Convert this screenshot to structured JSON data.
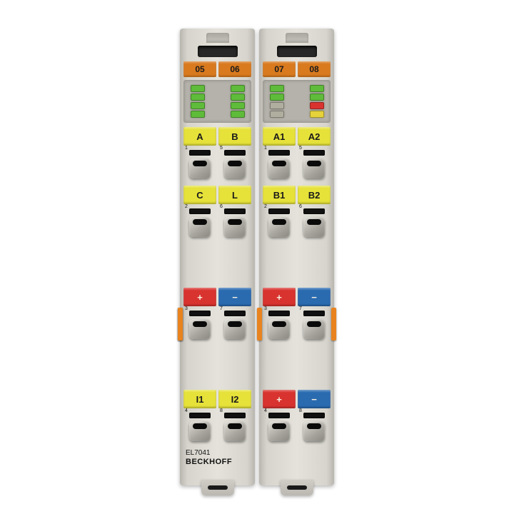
{
  "colors": {
    "orange": "#d97a1f",
    "orange_clip": "#e8831f",
    "yellow": "#e6e23a",
    "red": "#d9332f",
    "blue": "#2a6bb0",
    "led_green": "#5fbb3a",
    "led_off": "#b0ae9f",
    "led_red": "#d9332f",
    "led_yellow": "#e6d23a",
    "text_dark": "#1a1a1a",
    "text_light": "#f8efe0"
  },
  "product_id": "EL7041",
  "brand": "BECKHOFF",
  "left": {
    "bus": [
      "05",
      "06"
    ],
    "leds": [
      [
        "led_green",
        "led_green"
      ],
      [
        "led_green",
        "led_green"
      ],
      [
        "led_green",
        "led_green"
      ],
      [
        "led_green",
        "led_green"
      ]
    ],
    "group1": {
      "labels": [
        "A",
        "B"
      ],
      "color": "yellow",
      "txt": "text_dark",
      "nums": [
        "1",
        "5"
      ]
    },
    "group2": {
      "labels": [
        "C",
        "L"
      ],
      "color": "yellow",
      "txt": "text_dark",
      "nums": [
        "2",
        "6"
      ]
    },
    "group3": {
      "labels": [
        "+",
        "−"
      ],
      "colors": [
        "red",
        "blue"
      ],
      "txts": [
        "text_light",
        "text_light"
      ],
      "nums": [
        "3",
        "7"
      ]
    },
    "group3_clip_left": true,
    "group4": {
      "labels": [
        "I1",
        "I2"
      ],
      "color": "yellow",
      "txt": "text_dark",
      "nums": [
        "4",
        "8"
      ]
    }
  },
  "right": {
    "bus": [
      "07",
      "08"
    ],
    "leds": [
      [
        "led_green",
        "led_green"
      ],
      [
        "led_green",
        "led_green"
      ],
      [
        "led_off",
        "led_red"
      ],
      [
        "led_off",
        "led_yellow"
      ]
    ],
    "group1": {
      "labels": [
        "A1",
        "A2"
      ],
      "color": "yellow",
      "txt": "text_dark",
      "nums": [
        "1",
        "5"
      ]
    },
    "group2": {
      "labels": [
        "B1",
        "B2"
      ],
      "color": "yellow",
      "txt": "text_dark",
      "nums": [
        "2",
        "6"
      ]
    },
    "group3": {
      "labels": [
        "+",
        "−"
      ],
      "colors": [
        "red",
        "blue"
      ],
      "txts": [
        "text_light",
        "text_light"
      ],
      "nums": [
        "3",
        "7"
      ]
    },
    "group3_clip_both": true,
    "group4": {
      "labels": [
        "+",
        "−"
      ],
      "colors": [
        "red",
        "blue"
      ],
      "txts": [
        "text_light",
        "text_light"
      ],
      "nums": [
        "4",
        "8"
      ]
    }
  }
}
